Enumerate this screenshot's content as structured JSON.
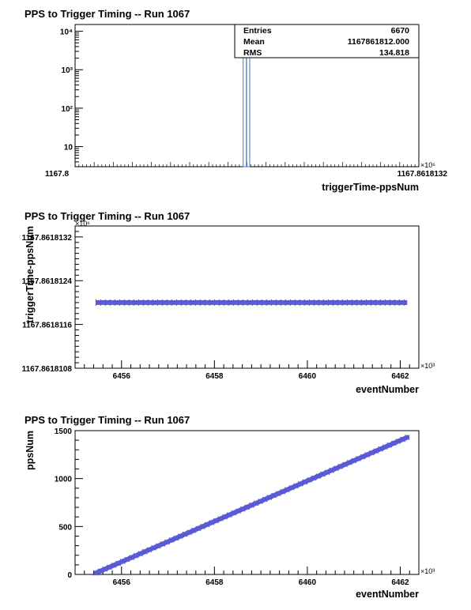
{
  "chart_data": [
    {
      "type": "bar",
      "title": "PPS to Trigger Timing -- Run 1067",
      "xlabel": "triggerTime-ppsNum",
      "ylabel": "",
      "y_scale": "log",
      "ylim": [
        3,
        15000
      ],
      "y_ticks": [
        10,
        100,
        1000,
        10000
      ],
      "y_tick_labels": [
        "10",
        "10²",
        "10³",
        "10⁴"
      ],
      "x_multiplier_label": "×10⁶",
      "x_tick_labels_overlapping": true,
      "x_tick_left_label": "1167.8",
      "x_tick_right_label": "1167.8618132",
      "bars": [
        {
          "x_frac": 0.4935,
          "value": 4000
        },
        {
          "x_frac": 0.5035,
          "value": 2500
        }
      ],
      "bar_color": "#5a8fd0",
      "stats": {
        "entries_label": "Entries",
        "entries": "6670",
        "mean_label": "Mean",
        "mean": "1167861812.000",
        "rms_label": "RMS",
        "rms": "134.818"
      }
    },
    {
      "type": "scatter",
      "title": "PPS to Trigger Timing -- Run 1067",
      "xlabel": "eventNumber",
      "ylabel": "triggerTime-ppsNum",
      "xlim": [
        6455.0,
        6462.4
      ],
      "ylim": [
        1167.8618108,
        1167.8618134
      ],
      "x_ticks": [
        6456,
        6458,
        6460,
        6462
      ],
      "y_ticks": [
        1167.8618108,
        1167.8618116,
        1167.8618124,
        1167.8618132
      ],
      "y_tick_labels": [
        "1167.8618108",
        "1167.8618116",
        "1167.8618124",
        "1167.8618132"
      ],
      "x_multiplier_label": "×10³",
      "y_multiplier_label": "×10⁶",
      "series": [
        {
          "x_start": 6455.45,
          "x_end": 6462.15,
          "y": 1167.861812
        }
      ],
      "marker_color": "#5b5bd6"
    },
    {
      "type": "scatter",
      "title": "PPS to Trigger Timing -- Run 1067",
      "xlabel": "eventNumber",
      "ylabel": "ppsNum",
      "xlim": [
        6455.0,
        6462.4
      ],
      "ylim": [
        0,
        1500
      ],
      "x_ticks": [
        6456,
        6458,
        6460,
        6462
      ],
      "y_ticks": [
        0,
        500,
        1000,
        1500
      ],
      "y_tick_labels": [
        "0",
        "500",
        "1000",
        "1500"
      ],
      "x_multiplier_label": "×10³",
      "series": [
        {
          "x_start": 6455.45,
          "x_end": 6462.15,
          "y_start": 15,
          "y_end": 1430
        }
      ],
      "marker_color": "#5b5bd6"
    }
  ]
}
